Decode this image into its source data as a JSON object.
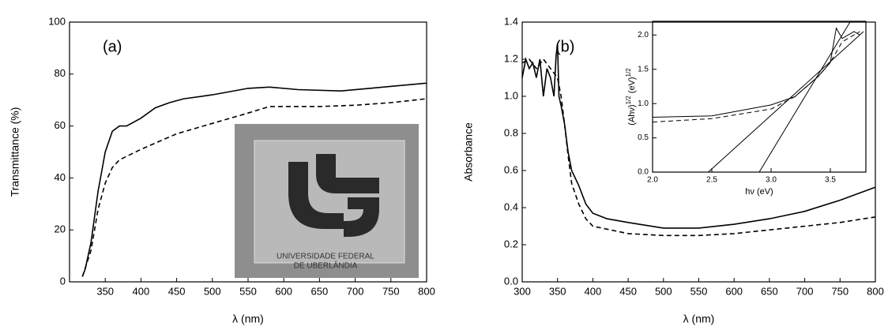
{
  "chart_data": [
    {
      "type": "line",
      "annotation": "(a)",
      "xlabel": "λ (nm)",
      "ylabel": "Transmittance (%)",
      "xlim": [
        300,
        800
      ],
      "ylim": [
        0,
        100
      ],
      "xticks": [
        350,
        400,
        450,
        500,
        550,
        600,
        650,
        700,
        750,
        800
      ],
      "yticks": [
        0,
        20,
        40,
        60,
        80,
        100
      ],
      "inset_text": [
        "UNIVERSIDADE FEDERAL",
        "DE UBERLÂNDIA"
      ],
      "series": [
        {
          "color": "#000000",
          "line_style": "solid",
          "x": [
            318,
            322,
            330,
            340,
            350,
            360,
            370,
            380,
            400,
            420,
            440,
            460,
            500,
            550,
            580,
            620,
            680,
            720,
            760,
            800
          ],
          "values": [
            2,
            5,
            15,
            35,
            50,
            58,
            60,
            60,
            63,
            67,
            69,
            70.5,
            72,
            74.5,
            75,
            74,
            73.5,
            74.5,
            75.5,
            76.5
          ]
        },
        {
          "color": "#000000",
          "line_style": "dashed",
          "x": [
            318,
            330,
            340,
            350,
            360,
            370,
            400,
            450,
            500,
            550,
            580,
            650,
            700,
            750,
            800
          ],
          "values": [
            2,
            12,
            28,
            38,
            44,
            47,
            51,
            57,
            61,
            65,
            67.5,
            67.5,
            68,
            69,
            70.5
          ]
        }
      ]
    },
    {
      "type": "line",
      "annotation": "(b)",
      "xlabel": "λ (nm)",
      "ylabel": "Absorbance",
      "xlim": [
        300,
        800
      ],
      "ylim": [
        0,
        1.4
      ],
      "xticks": [
        300,
        350,
        400,
        450,
        500,
        550,
        600,
        650,
        700,
        750,
        800
      ],
      "yticks": [
        {
          "value": 0,
          "label": "0.0"
        },
        0.2,
        0.4,
        0.6,
        0.8,
        {
          "value": 1,
          "label": "1.0"
        },
        1.2,
        1.4
      ],
      "series": [
        {
          "color": "#000000",
          "line_style": "solid",
          "x": [
            300,
            305,
            310,
            315,
            320,
            325,
            330,
            335,
            340,
            345,
            348,
            350,
            352,
            355,
            360,
            365,
            370,
            380,
            390,
            400,
            420,
            450,
            500,
            550,
            600,
            650,
            700,
            750,
            800
          ],
          "values": [
            1.1,
            1.2,
            1.15,
            1.18,
            1.1,
            1.2,
            1.0,
            1.15,
            1.1,
            1.0,
            1.22,
            1.28,
            1.0,
            0.95,
            0.85,
            0.7,
            0.6,
            0.52,
            0.42,
            0.37,
            0.34,
            0.32,
            0.29,
            0.29,
            0.31,
            0.34,
            0.38,
            0.44,
            0.51
          ]
        },
        {
          "color": "#000000",
          "line_style": "dashed",
          "x": [
            300,
            310,
            320,
            330,
            340,
            350,
            355,
            360,
            365,
            370,
            380,
            390,
            400,
            450,
            500,
            550,
            600,
            650,
            700,
            750,
            800
          ],
          "values": [
            1.18,
            1.2,
            1.15,
            1.2,
            1.15,
            1.1,
            1.0,
            0.85,
            0.68,
            0.53,
            0.42,
            0.34,
            0.3,
            0.26,
            0.25,
            0.25,
            0.26,
            0.28,
            0.3,
            0.32,
            0.35
          ]
        }
      ]
    },
    {
      "type": "line",
      "xlabel": "hν (eV)",
      "ylabel": [
        "(Ahν)",
        "1/2",
        " (eV)",
        "1/2"
      ],
      "xlim": [
        2,
        3.8
      ],
      "ylim": [
        0,
        2.2
      ],
      "xticks": [
        {
          "value": 2,
          "label": "2.0"
        },
        2.5,
        {
          "value": 3,
          "label": "3.0"
        },
        3.5
      ],
      "yticks": [
        {
          "value": 0,
          "label": "0.0"
        },
        0.5,
        {
          "value": 1,
          "label": "1.0"
        },
        1.5,
        {
          "value": 2,
          "label": "2.0"
        }
      ],
      "series": [
        {
          "color": "#000000",
          "line_style": "solid",
          "x": [
            2.0,
            2.5,
            3.0,
            3.2,
            3.4,
            3.5,
            3.55,
            3.6,
            3.7,
            3.75
          ],
          "values": [
            0.8,
            0.82,
            0.98,
            1.1,
            1.4,
            1.6,
            2.1,
            1.95,
            2.05,
            2.0
          ]
        },
        {
          "color": "#000000",
          "line_style": "dashed",
          "x": [
            2.0,
            2.5,
            3.0,
            3.2,
            3.4,
            3.5,
            3.6,
            3.75
          ],
          "values": [
            0.73,
            0.78,
            0.92,
            1.1,
            1.4,
            1.6,
            1.9,
            2.05
          ]
        },
        {
          "color": "#000000",
          "line_style": "solid",
          "x": [
            2.47,
            3.78
          ],
          "values": [
            0,
            2.05
          ]
        },
        {
          "color": "#000000",
          "line_style": "solid",
          "x": [
            2.9,
            3.67
          ],
          "values": [
            0,
            2.2
          ]
        }
      ]
    }
  ]
}
